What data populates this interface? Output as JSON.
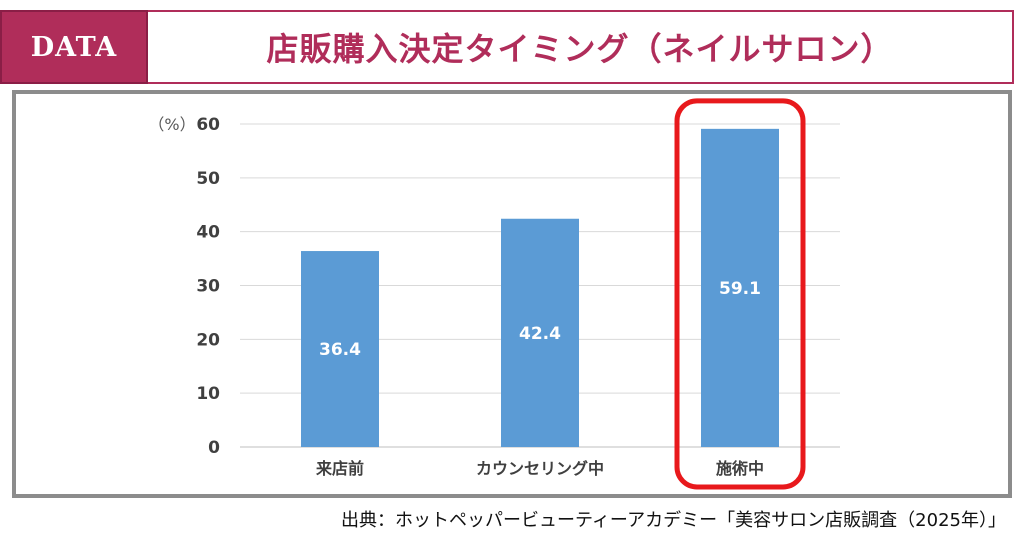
{
  "header": {
    "badge": "DATA",
    "title": "店販購入決定タイミング（ネイルサロン）"
  },
  "colors": {
    "accent": "#b02d5a",
    "bar": "#5b9bd5",
    "highlight": "#e8191c",
    "frame": "#8c8c8c"
  },
  "chart_data": {
    "type": "bar",
    "title": "店販購入決定タイミング（ネイルサロン）",
    "categories": [
      "来店前",
      "カウンセリング中",
      "施術中"
    ],
    "values": [
      36.4,
      42.4,
      59.1
    ],
    "value_labels": [
      "36.4",
      "42.4",
      "59.1"
    ],
    "ylabel": "（%）",
    "ylim": [
      0,
      60
    ],
    "yticks": [
      0,
      10,
      20,
      30,
      40,
      50,
      60
    ],
    "grid": true,
    "highlight_category": "施術中"
  },
  "source": "出典：ホットペッパービューティーアカデミー「美容サロン店販調査（2025年）」"
}
